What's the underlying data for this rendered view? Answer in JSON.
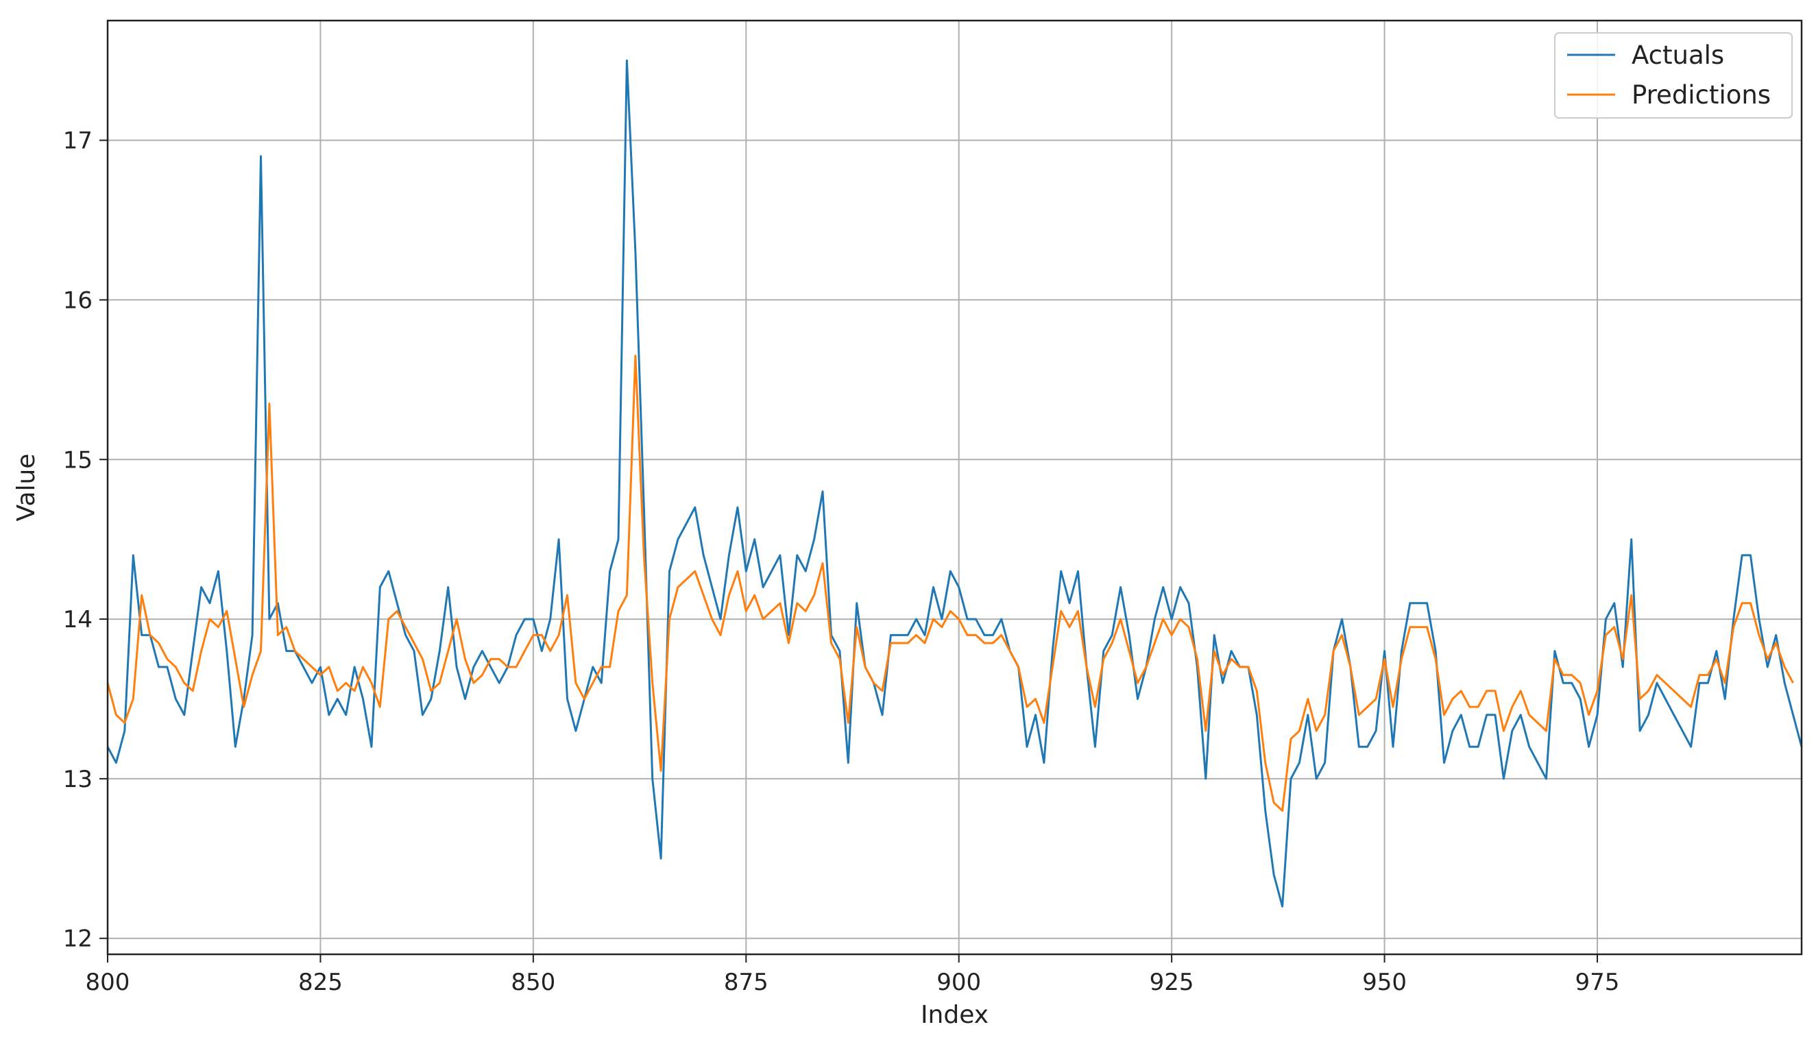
{
  "chart_data": {
    "type": "line",
    "xlabel": "Index",
    "ylabel": "Value",
    "xlim": [
      800,
      999
    ],
    "ylim": [
      11.9,
      17.75
    ],
    "xticks": [
      800,
      825,
      850,
      875,
      900,
      925,
      950,
      975
    ],
    "yticks": [
      12,
      13,
      14,
      15,
      16,
      17
    ],
    "grid": true,
    "legend_position": "top-right",
    "x_start": 800,
    "series": [
      {
        "name": "Actuals",
        "color": "#1f77b4",
        "values": [
          13.2,
          13.1,
          13.3,
          14.4,
          13.9,
          13.9,
          13.7,
          13.7,
          13.5,
          13.4,
          13.8,
          14.2,
          14.1,
          14.3,
          13.8,
          13.2,
          13.5,
          13.9,
          16.9,
          14.0,
          14.1,
          13.8,
          13.8,
          13.7,
          13.6,
          13.7,
          13.4,
          13.5,
          13.4,
          13.7,
          13.5,
          13.2,
          14.2,
          14.3,
          14.1,
          13.9,
          13.8,
          13.4,
          13.5,
          13.8,
          14.2,
          13.7,
          13.5,
          13.7,
          13.8,
          13.7,
          13.6,
          13.7,
          13.9,
          14.0,
          14.0,
          13.8,
          14.0,
          14.5,
          13.5,
          13.3,
          13.5,
          13.7,
          13.6,
          14.3,
          14.5,
          17.5,
          16.3,
          14.7,
          13.0,
          12.5,
          14.3,
          14.5,
          14.6,
          14.7,
          14.4,
          14.2,
          14.0,
          14.4,
          14.7,
          14.3,
          14.5,
          14.2,
          14.3,
          14.4,
          13.9,
          14.4,
          14.3,
          14.5,
          14.8,
          13.9,
          13.8,
          13.1,
          14.1,
          13.7,
          13.6,
          13.4,
          13.9,
          13.9,
          13.9,
          14.0,
          13.9,
          14.2,
          14.0,
          14.3,
          14.2,
          14.0,
          14.0,
          13.9,
          13.9,
          14.0,
          13.8,
          13.7,
          13.2,
          13.4,
          13.1,
          13.8,
          14.3,
          14.1,
          14.3,
          13.7,
          13.2,
          13.8,
          13.9,
          14.2,
          13.9,
          13.5,
          13.7,
          14.0,
          14.2,
          14.0,
          14.2,
          14.1,
          13.7,
          13.0,
          13.9,
          13.6,
          13.8,
          13.7,
          13.7,
          13.4,
          12.8,
          12.4,
          12.2,
          13.0,
          13.1,
          13.4,
          13.0,
          13.1,
          13.8,
          14.0,
          13.7,
          13.2,
          13.2,
          13.3,
          13.8,
          13.2,
          13.8,
          14.1,
          14.1,
          14.1,
          13.8,
          13.1,
          13.3,
          13.4,
          13.2,
          13.2,
          13.4,
          13.4,
          13.0,
          13.3,
          13.4,
          13.2,
          13.1,
          13.0,
          13.8,
          13.6,
          13.6,
          13.5,
          13.2,
          13.4,
          14.0,
          14.1,
          13.7,
          14.5,
          13.3,
          13.4,
          13.6,
          13.5,
          13.4,
          13.3,
          13.2,
          13.6,
          13.6,
          13.8,
          13.5,
          14.0,
          14.4,
          14.4,
          14.0,
          13.7,
          13.9,
          13.6,
          13.4,
          13.2
        ]
      },
      {
        "name": "Predictions",
        "color": "#ff7f0e",
        "values": [
          13.6,
          13.4,
          13.35,
          13.5,
          14.15,
          13.9,
          13.85,
          13.75,
          13.7,
          13.6,
          13.55,
          13.8,
          14.0,
          13.95,
          14.05,
          13.75,
          13.45,
          13.65,
          13.8,
          15.35,
          13.9,
          13.95,
          13.8,
          13.75,
          13.7,
          13.65,
          13.7,
          13.55,
          13.6,
          13.55,
          13.7,
          13.6,
          13.45,
          14.0,
          14.05,
          13.95,
          13.85,
          13.75,
          13.55,
          13.6,
          13.8,
          14.0,
          13.75,
          13.6,
          13.65,
          13.75,
          13.75,
          13.7,
          13.7,
          13.8,
          13.9,
          13.9,
          13.8,
          13.9,
          14.15,
          13.6,
          13.5,
          13.6,
          13.7,
          13.7,
          14.05,
          14.15,
          15.65,
          14.4,
          13.6,
          13.05,
          14.0,
          14.2,
          14.25,
          14.3,
          14.15,
          14.0,
          13.9,
          14.15,
          14.3,
          14.05,
          14.15,
          14.0,
          14.05,
          14.1,
          13.85,
          14.1,
          14.05,
          14.15,
          14.35,
          13.85,
          13.75,
          13.35,
          13.95,
          13.7,
          13.6,
          13.55,
          13.85,
          13.85,
          13.85,
          13.9,
          13.85,
          14.0,
          13.95,
          14.05,
          14.0,
          13.9,
          13.9,
          13.85,
          13.85,
          13.9,
          13.8,
          13.7,
          13.45,
          13.5,
          13.35,
          13.7,
          14.05,
          13.95,
          14.05,
          13.7,
          13.45,
          13.75,
          13.85,
          14.0,
          13.8,
          13.6,
          13.7,
          13.85,
          14.0,
          13.9,
          14.0,
          13.95,
          13.75,
          13.3,
          13.8,
          13.65,
          13.75,
          13.7,
          13.7,
          13.55,
          13.1,
          12.85,
          12.8,
          13.25,
          13.3,
          13.5,
          13.3,
          13.4,
          13.8,
          13.9,
          13.7,
          13.4,
          13.45,
          13.5,
          13.75,
          13.45,
          13.75,
          13.95,
          13.95,
          13.95,
          13.75,
          13.4,
          13.5,
          13.55,
          13.45,
          13.45,
          13.55,
          13.55,
          13.3,
          13.45,
          13.55,
          13.4,
          13.35,
          13.3,
          13.75,
          13.65,
          13.65,
          13.6,
          13.4,
          13.55,
          13.9,
          13.95,
          13.75,
          14.15,
          13.5,
          13.55,
          13.65,
          13.6,
          13.55,
          13.5,
          13.45,
          13.65,
          13.65,
          13.75,
          13.6,
          13.95,
          14.1,
          14.1,
          13.9,
          13.75,
          13.85,
          13.7,
          13.6
        ]
      }
    ]
  }
}
